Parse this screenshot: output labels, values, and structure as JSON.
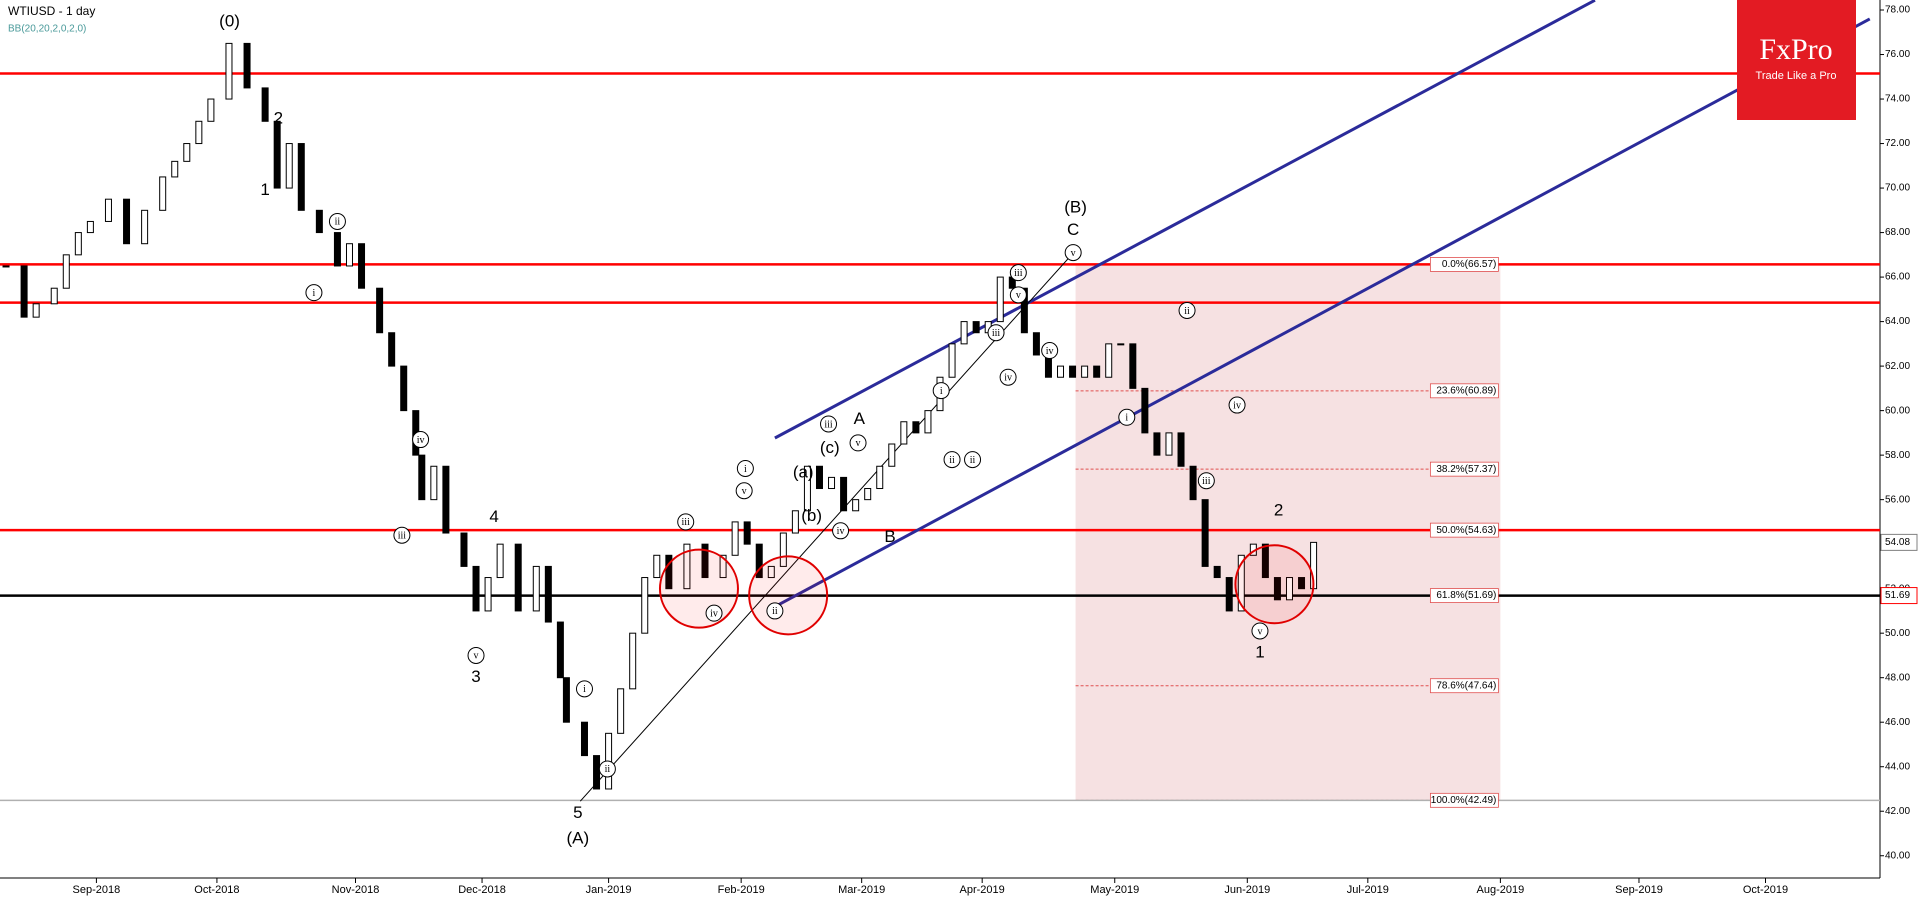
{
  "chart_data": {
    "type": "candlestick",
    "title": "WTIUSD - 1 day",
    "subtitle": "BB(20,20,2,0,2,0)",
    "xlim": [
      -1,
      311
    ],
    "ylim": [
      39.0,
      78.45
    ],
    "xticks": [
      {
        "value": 15,
        "label": "Sep-2018"
      },
      {
        "value": 35,
        "label": "Oct-2018"
      },
      {
        "value": 58,
        "label": "Nov-2018"
      },
      {
        "value": 79,
        "label": "Dec-2018"
      },
      {
        "value": 100,
        "label": "Jan-2019"
      },
      {
        "value": 122,
        "label": "Feb-2019"
      },
      {
        "value": 142,
        "label": "Mar-2019"
      },
      {
        "value": 162,
        "label": "Apr-2019"
      },
      {
        "value": 184,
        "label": "May-2019"
      },
      {
        "value": 206,
        "label": "Jun-2019"
      },
      {
        "value": 226,
        "label": "Jul-2019"
      },
      {
        "value": 248,
        "label": "Aug-2019"
      },
      {
        "value": 271,
        "label": "Sep-2019"
      },
      {
        "value": 292,
        "label": "Oct-2019"
      }
    ],
    "yticks": [
      {
        "value": 40,
        "label": "40.00"
      },
      {
        "value": 42,
        "label": "42.00"
      },
      {
        "value": 44,
        "label": "44.00"
      },
      {
        "value": 46,
        "label": "46.00"
      },
      {
        "value": 48,
        "label": "48.00"
      },
      {
        "value": 50,
        "label": "50.00"
      },
      {
        "value": 52,
        "label": "52.00"
      },
      {
        "value": 54,
        "label": "54.00"
      },
      {
        "value": 56,
        "label": "56.00"
      },
      {
        "value": 58,
        "label": "58.00"
      },
      {
        "value": 60,
        "label": "60.00"
      },
      {
        "value": 62,
        "label": "62.00"
      },
      {
        "value": 64,
        "label": "64.00"
      },
      {
        "value": 66,
        "label": "66.00"
      },
      {
        "value": 68,
        "label": "68.00"
      },
      {
        "value": 70,
        "label": "70.00"
      },
      {
        "value": 72,
        "label": "72.00"
      },
      {
        "value": 74,
        "label": "74.00"
      },
      {
        "value": 76,
        "label": "76.00"
      },
      {
        "value": 78,
        "label": "78.00"
      }
    ],
    "x": [
      0,
      3,
      5,
      8,
      10,
      12,
      14,
      17,
      20,
      23,
      26,
      28,
      30,
      32,
      34,
      37,
      40,
      43,
      45,
      47,
      49,
      52,
      55,
      57,
      59,
      62,
      64,
      66,
      68,
      69,
      71,
      73,
      76,
      78,
      80,
      82,
      85,
      88,
      90,
      92,
      93,
      96,
      98,
      100,
      102,
      104,
      106,
      108,
      110,
      113,
      116,
      119,
      121,
      123,
      125,
      127,
      129,
      131,
      133,
      135,
      137,
      139,
      141,
      143,
      145,
      147,
      149,
      151,
      153,
      155,
      157,
      159,
      161,
      163,
      165,
      167,
      169,
      171,
      173,
      175,
      177,
      179,
      181,
      183,
      185,
      187,
      189,
      191,
      193,
      195,
      197,
      199,
      201,
      203,
      205,
      207,
      209,
      211,
      213,
      215,
      217
    ],
    "values": [
      66.5,
      64.2,
      64.8,
      65.5,
      67,
      68,
      68.5,
      69.5,
      67.5,
      69,
      70.5,
      71.2,
      72,
      73,
      74,
      76.5,
      74.5,
      73,
      70,
      72,
      69,
      68,
      66.5,
      67.5,
      65.5,
      63.5,
      62,
      60,
      58,
      56,
      57.5,
      54.5,
      53,
      51,
      52.5,
      54,
      51,
      53,
      50.5,
      48,
      46,
      44.5,
      43,
      45.5,
      47.5,
      50,
      52.5,
      53.5,
      52,
      54,
      52.5,
      53.5,
      55,
      54,
      52.5,
      53,
      54.5,
      55.5,
      57.5,
      56.5,
      57,
      55.5,
      56,
      56.5,
      57.5,
      58.5,
      59.5,
      59,
      60,
      61.5,
      63,
      64,
      63.5,
      64,
      66,
      65.5,
      63.5,
      62.5,
      61.5,
      62,
      61.5,
      62,
      61.5,
      63,
      63,
      61,
      59,
      58,
      59,
      57.5,
      56,
      53,
      52.5,
      51,
      53.5,
      54,
      52.5,
      51.5,
      52.5,
      52,
      54.08
    ],
    "up_color": "#ffffff",
    "down_color": "#000000",
    "levels": [
      {
        "value": 75.15,
        "color": "#ff0000"
      },
      {
        "value": 66.57,
        "color": "#ff0000"
      },
      {
        "value": 64.85,
        "color": "#ff0000"
      },
      {
        "value": 54.63,
        "color": "#ff0000"
      },
      {
        "value": 51.69,
        "color": "#000000"
      },
      {
        "value": 42.49,
        "color": "#b0b0b0"
      }
    ],
    "fib": {
      "range": [
        177.5,
        248
      ],
      "color": "#f6e1e2",
      "line_color": "#e05050",
      "levels": [
        {
          "value": 66.57,
          "label": "0.0%(66.57)"
        },
        {
          "value": 60.89,
          "label": "23.6%(60.89)"
        },
        {
          "value": 57.37,
          "label": "38.2%(57.37)"
        },
        {
          "value": 54.63,
          "label": "50.0%(54.63)"
        },
        {
          "value": 51.69,
          "label": "61.8%(51.69)"
        },
        {
          "value": 47.64,
          "label": "78.6%(47.64)"
        },
        {
          "value": 42.49,
          "label": "100.0%(42.49)"
        }
      ]
    },
    "channels": [
      {
        "x": [
          127.6,
          263.7
        ],
        "y": [
          58.77,
          78.44
        ],
        "color": "#2b2b9a"
      },
      {
        "x": [
          127.6,
          309.3
        ],
        "y": [
          51.19,
          77.6
        ],
        "color": "#2b2b9a"
      },
      {
        "x": [
          95.3,
          177.5
        ],
        "y": [
          42.45,
          67.2
        ],
        "color": "#000000"
      }
    ],
    "circles": [
      {
        "x": 115,
        "y": 52.0
      },
      {
        "x": 129.8,
        "y": 51.7
      },
      {
        "x": 210.5,
        "y": 52.2
      }
    ],
    "wave_labels": [
      {
        "x": 37.1,
        "y": 77.45,
        "text": "(0)",
        "circled": false
      },
      {
        "x": 45.2,
        "y": 73.1,
        "text": "2",
        "circled": false
      },
      {
        "x": 43,
        "y": 69.9,
        "text": "1",
        "circled": false
      },
      {
        "x": 55,
        "y": 68.5,
        "text": "ii",
        "circled": true
      },
      {
        "x": 51.1,
        "y": 65.3,
        "text": "i",
        "circled": true
      },
      {
        "x": 68.8,
        "y": 58.7,
        "text": "iv",
        "circled": true
      },
      {
        "x": 65.7,
        "y": 54.4,
        "text": "iii",
        "circled": true
      },
      {
        "x": 81,
        "y": 55.2,
        "text": "4",
        "circled": false
      },
      {
        "x": 78,
        "y": 49.0,
        "text": "v",
        "circled": true
      },
      {
        "x": 78,
        "y": 48.0,
        "text": "3",
        "circled": false
      },
      {
        "x": 94.9,
        "y": 41.9,
        "text": "5",
        "circled": false
      },
      {
        "x": 94.9,
        "y": 40.75,
        "text": "(A)",
        "circled": false
      },
      {
        "x": 96,
        "y": 47.5,
        "text": "i",
        "circled": true
      },
      {
        "x": 99.8,
        "y": 43.9,
        "text": "ii",
        "circled": true
      },
      {
        "x": 112.8,
        "y": 55.0,
        "text": "iii",
        "circled": true
      },
      {
        "x": 117.5,
        "y": 50.9,
        "text": "iv",
        "circled": true
      },
      {
        "x": 122.5,
        "y": 56.4,
        "text": "v",
        "circled": true
      },
      {
        "x": 122.7,
        "y": 57.4,
        "text": "i",
        "circled": true
      },
      {
        "x": 127.6,
        "y": 51.0,
        "text": "ii",
        "circled": true
      },
      {
        "x": 133.7,
        "y": 55.25,
        "text": "(b)",
        "circled": false
      },
      {
        "x": 132.3,
        "y": 57.2,
        "text": "(a)",
        "circled": false
      },
      {
        "x": 136.7,
        "y": 58.3,
        "text": "(c)",
        "circled": false
      },
      {
        "x": 136.5,
        "y": 59.4,
        "text": "iii",
        "circled": true
      },
      {
        "x": 141.6,
        "y": 59.6,
        "text": "A",
        "circled": false
      },
      {
        "x": 141.4,
        "y": 58.55,
        "text": "v",
        "circled": true
      },
      {
        "x": 138.5,
        "y": 54.6,
        "text": "iv",
        "circled": true
      },
      {
        "x": 146.7,
        "y": 54.3,
        "text": "B",
        "circled": false
      },
      {
        "x": 155.2,
        "y": 60.9,
        "text": "i",
        "circled": true
      },
      {
        "x": 157,
        "y": 57.8,
        "text": "ii",
        "circled": true
      },
      {
        "x": 160.4,
        "y": 57.8,
        "text": "ii",
        "circled": true
      },
      {
        "x": 164.3,
        "y": 63.5,
        "text": "iii",
        "circled": true
      },
      {
        "x": 166.3,
        "y": 61.5,
        "text": "iv",
        "circled": true
      },
      {
        "x": 168,
        "y": 65.2,
        "text": "v",
        "circled": true
      },
      {
        "x": 168,
        "y": 66.2,
        "text": "iii",
        "circled": true
      },
      {
        "x": 173.2,
        "y": 62.7,
        "text": "iv",
        "circled": true
      },
      {
        "x": 177.5,
        "y": 69.1,
        "text": "(B)",
        "circled": false
      },
      {
        "x": 177.1,
        "y": 68.1,
        "text": "C",
        "circled": false
      },
      {
        "x": 177.1,
        "y": 67.1,
        "text": "v",
        "circled": true
      },
      {
        "x": 196,
        "y": 64.5,
        "text": "ii",
        "circled": true
      },
      {
        "x": 186,
        "y": 59.7,
        "text": "i",
        "circled": true
      },
      {
        "x": 204.3,
        "y": 60.25,
        "text": "iv",
        "circled": true
      },
      {
        "x": 199.2,
        "y": 56.85,
        "text": "iii",
        "circled": true
      },
      {
        "x": 211.2,
        "y": 55.5,
        "text": "2",
        "circled": false
      },
      {
        "x": 208.1,
        "y": 50.1,
        "text": "v",
        "circled": true
      },
      {
        "x": 208.1,
        "y": 49.1,
        "text": "1",
        "circled": false
      }
    ],
    "price_tags": [
      {
        "value": 54.08,
        "label": "54.08",
        "color": "#808080"
      },
      {
        "value": 51.69,
        "label": "51.69",
        "color": "#ff0000"
      }
    ],
    "logo": {
      "brand": "FxPro",
      "tagline": "Trade Like a Pro",
      "color": "#e31b23"
    }
  }
}
